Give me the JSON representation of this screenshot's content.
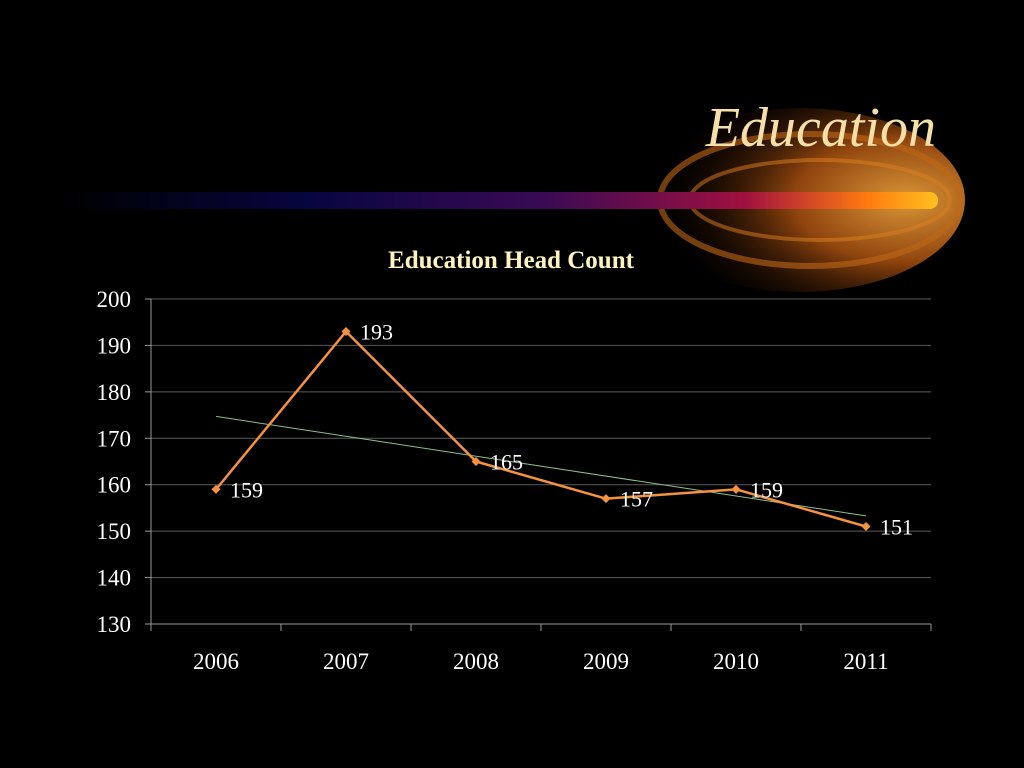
{
  "slide": {
    "title": "Education",
    "colors": {
      "background": "#000000",
      "title": "#f7e0a8",
      "accent": "#ff9a2e"
    }
  },
  "chart_data": {
    "type": "line",
    "title": "Education Head Count",
    "xlabel": "",
    "ylabel": "",
    "categories": [
      "2006",
      "2007",
      "2008",
      "2009",
      "2010",
      "2011"
    ],
    "series": [
      {
        "name": "",
        "values": [
          159,
          193,
          165,
          157,
          159,
          151
        ],
        "color": "#f5923e"
      }
    ],
    "data_labels": [
      "159",
      "193",
      "165",
      "157",
      "159",
      "151"
    ],
    "yticks": [
      "130",
      "140",
      "150",
      "160",
      "170",
      "180",
      "190",
      "200"
    ],
    "ylim": [
      130,
      200
    ],
    "ytick_step": 10,
    "trendline": {
      "type": "linear",
      "color": "#8fbf8f"
    },
    "grid": true,
    "legend": false
  }
}
